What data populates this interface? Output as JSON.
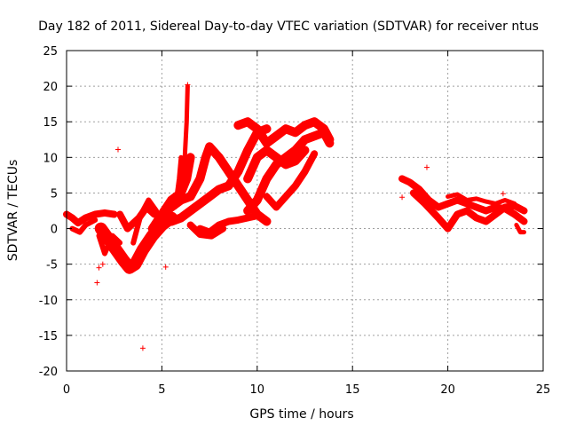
{
  "chart_data": {
    "type": "scatter",
    "title": "Day 182 of 2011, Sidereal Day-to-day VTEC variation (SDTVAR) for receiver ntus",
    "xlabel": "GPS time / hours",
    "ylabel": "SDTVAR / TECUs",
    "xlim": [
      0,
      25
    ],
    "ylim": [
      -20,
      25
    ],
    "xticks": [
      "0",
      "5",
      "10",
      "15",
      "20",
      "25"
    ],
    "yticks": [
      "-20",
      "-15",
      "-10",
      "-5",
      "0",
      "5",
      "10",
      "15",
      "20",
      "25"
    ],
    "grid": true,
    "marker": "+",
    "series_color": "#ff0000",
    "series": [
      {
        "name": "SDTVAR",
        "values": [
          {
            "x": 1.6,
            "y": -7.6
          },
          {
            "x": 2.7,
            "y": 11.1
          },
          {
            "x": 4.0,
            "y": -16.8
          },
          {
            "x": 5.2,
            "y": -5.4
          },
          {
            "x": 17.6,
            "y": 4.4
          },
          {
            "x": 18.9,
            "y": 8.6
          },
          {
            "x": 22.9,
            "y": 4.9
          },
          {
            "x": 6.35,
            "y": 20.2
          },
          {
            "x": 1.7,
            "y": -5.5
          },
          {
            "x": 1.9,
            "y": -5.0
          }
        ]
      }
    ]
  }
}
